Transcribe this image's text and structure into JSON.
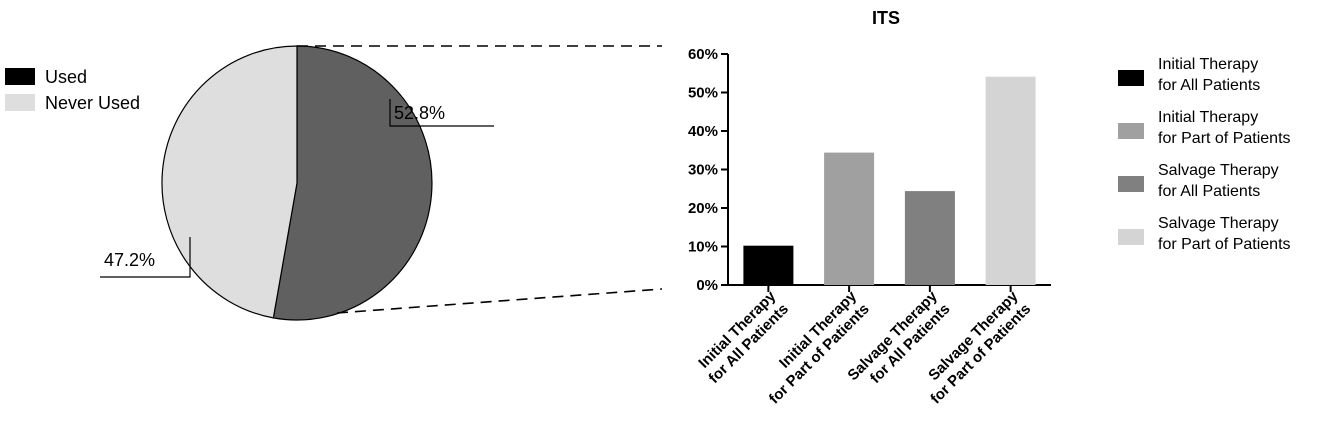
{
  "chart_data": [
    {
      "type": "pie",
      "title": "",
      "legend": [
        {
          "label": "Used",
          "color": "#000000"
        },
        {
          "label": "Never Used",
          "color": "#dedede"
        }
      ],
      "legend_position": "left",
      "slices": [
        {
          "label": "Used",
          "value": 52.8,
          "value_label": "52.8%",
          "color": "#606060"
        },
        {
          "label": "Never Used",
          "value": 47.2,
          "value_label": "47.2%",
          "color": "#dedede"
        }
      ]
    },
    {
      "type": "bar",
      "title": "ITS",
      "xlabel": "",
      "ylabel": "",
      "ylim": [
        0,
        60
      ],
      "yticks": [
        {
          "value": 0,
          "label": "0%"
        },
        {
          "value": 10,
          "label": "10%"
        },
        {
          "value": 20,
          "label": "20%"
        },
        {
          "value": 30,
          "label": "30%"
        },
        {
          "value": 40,
          "label": "40%"
        },
        {
          "value": 50,
          "label": "50%"
        },
        {
          "value": 60,
          "label": "60%"
        }
      ],
      "legend_position": "right",
      "categories": [
        {
          "line1": "Initial Therapy",
          "line2": "for All Patients"
        },
        {
          "line1": "Initial Therapy",
          "line2": "for Part of Patients"
        },
        {
          "line1": "Salvage Therapy",
          "line2": "for All Patients"
        },
        {
          "line1": "Salvage Therapy",
          "line2": "for Part of Patients"
        }
      ],
      "values": [
        10.2,
        34.4,
        24.4,
        54.1
      ],
      "colors": [
        "#000000",
        "#a0a0a0",
        "#808080",
        "#d4d4d4"
      ],
      "legend": [
        {
          "line1": "Initial Therapy",
          "line2": "for All Patients",
          "color": "#000000"
        },
        {
          "line1": "Initial Therapy",
          "line2": "for Part of Patients",
          "color": "#a0a0a0"
        },
        {
          "line1": "Salvage Therapy",
          "line2": "for All Patients",
          "color": "#808080"
        },
        {
          "line1": "Salvage Therapy",
          "line2": "for Part of Patients",
          "color": "#d4d4d4"
        }
      ]
    }
  ]
}
